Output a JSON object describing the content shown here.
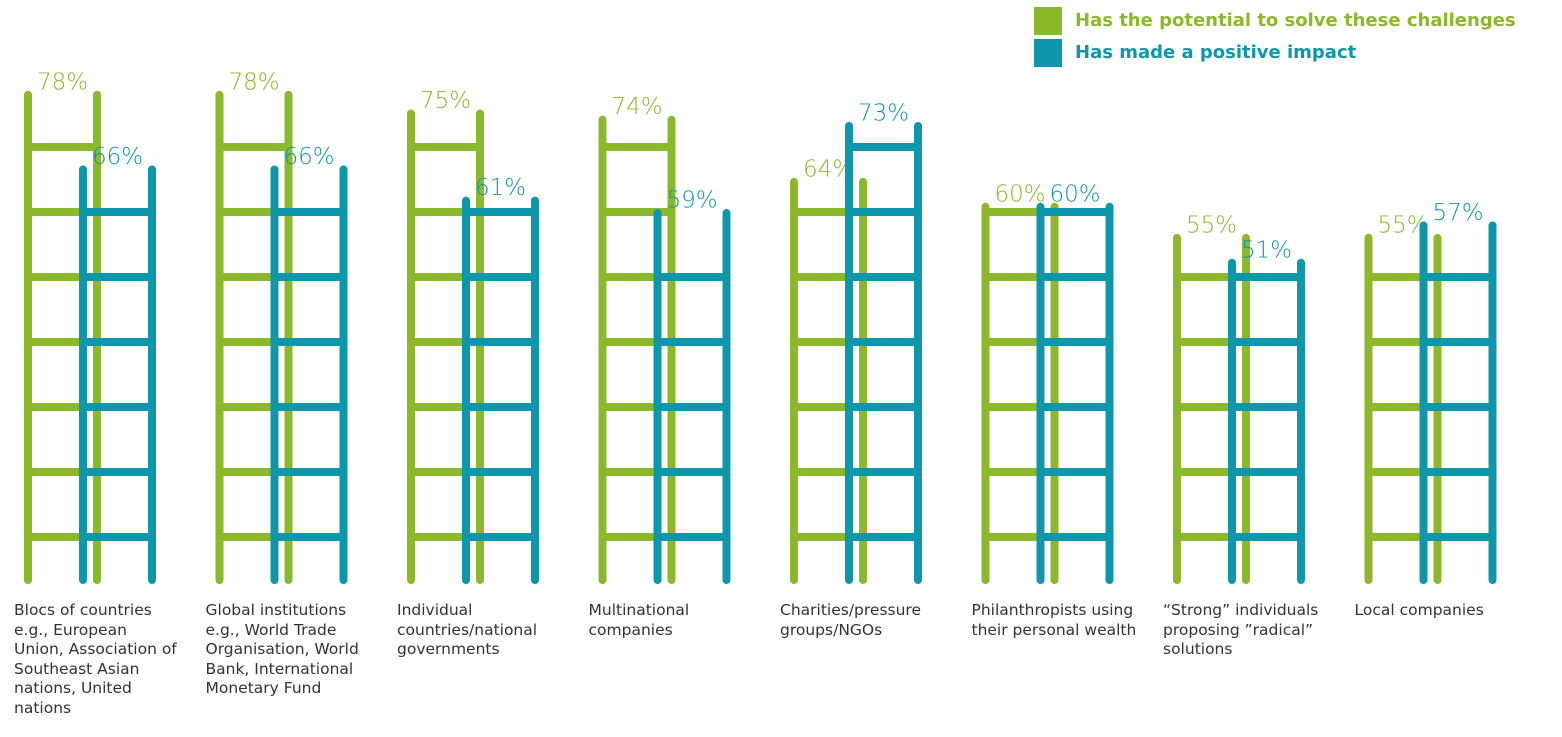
{
  "chart_data": {
    "type": "ladder",
    "categories": [
      "Blocs of countries e.g., European Union, Association of Southeast Asian nations, United nations",
      "Global institutions e.g., World Trade Organisation, World Bank, International Monetary Fund",
      "Individual countries/national governments",
      "Multinational companies",
      "Charities/pressure groups/NGOs",
      "Philanthropists using their personal wealth",
      "“Strong” individuals proposing ”radical” solutions",
      "Local companies"
    ],
    "series": [
      {
        "name": "Has the potential to solve these challenges",
        "color": "#8cb82b",
        "values": [
          78,
          78,
          75,
          74,
          64,
          60,
          55,
          55
        ],
        "value_labels": [
          "78%",
          "78%",
          "75%",
          "74%",
          "64%",
          "60%",
          "55%",
          "55%"
        ]
      },
      {
        "name": "Has made a positive impact",
        "color": "#0e97ab",
        "values": [
          66,
          66,
          61,
          59,
          73,
          60,
          51,
          57
        ],
        "value_labels": [
          "66%",
          "66%",
          "61%",
          "59%",
          "73%",
          "60%",
          "51%",
          "57%"
        ]
      }
    ],
    "legend": "top-right"
  }
}
